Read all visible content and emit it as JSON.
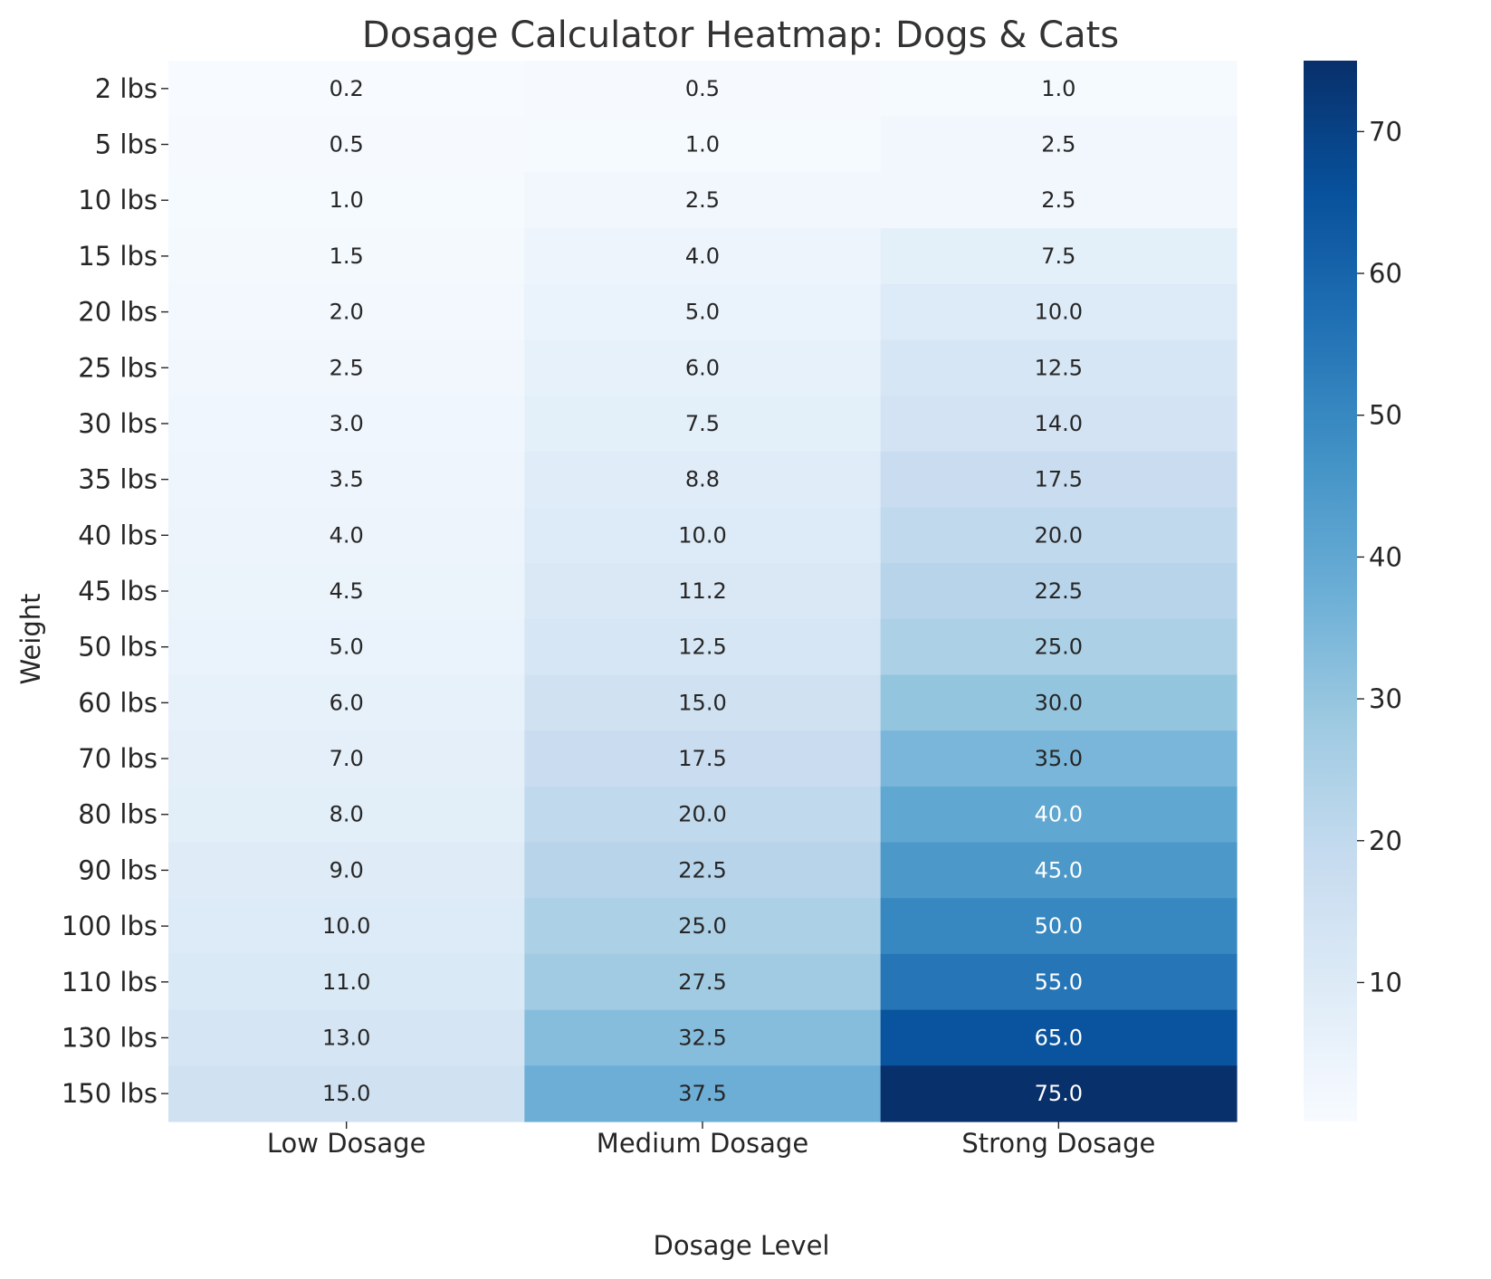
{
  "chart_data": {
    "type": "heatmap",
    "title": "Dosage Calculator Heatmap: Dogs & Cats",
    "xlabel": "Dosage Level",
    "ylabel": "Weight",
    "x_categories": [
      "Low Dosage",
      "Medium Dosage",
      "Strong Dosage"
    ],
    "y_categories": [
      "2 lbs",
      "5 lbs",
      "10 lbs",
      "15 lbs",
      "20 lbs",
      "25 lbs",
      "30 lbs",
      "35 lbs",
      "40 lbs",
      "45 lbs",
      "50 lbs",
      "60 lbs",
      "70 lbs",
      "80 lbs",
      "90 lbs",
      "100 lbs",
      "110 lbs",
      "130 lbs",
      "150 lbs"
    ],
    "values": [
      [
        0.2,
        0.5,
        1.0
      ],
      [
        0.5,
        1.0,
        2.5
      ],
      [
        1.0,
        2.5,
        2.5
      ],
      [
        1.5,
        4.0,
        7.5
      ],
      [
        2.0,
        5.0,
        10.0
      ],
      [
        2.5,
        6.0,
        12.5
      ],
      [
        3.0,
        7.5,
        14.0
      ],
      [
        3.5,
        8.8,
        17.5
      ],
      [
        4.0,
        10.0,
        20.0
      ],
      [
        4.5,
        11.2,
        22.5
      ],
      [
        5.0,
        12.5,
        25.0
      ],
      [
        6.0,
        15.0,
        30.0
      ],
      [
        7.0,
        17.5,
        35.0
      ],
      [
        8.0,
        20.0,
        40.0
      ],
      [
        9.0,
        22.5,
        45.0
      ],
      [
        10.0,
        25.0,
        50.0
      ],
      [
        11.0,
        27.5,
        55.0
      ],
      [
        13.0,
        32.5,
        65.0
      ],
      [
        15.0,
        37.5,
        75.0
      ]
    ],
    "value_labels": [
      [
        "0.2",
        "0.5",
        "1.0"
      ],
      [
        "0.5",
        "1.0",
        "2.5"
      ],
      [
        "1.0",
        "2.5",
        "2.5"
      ],
      [
        "1.5",
        "4.0",
        "7.5"
      ],
      [
        "2.0",
        "5.0",
        "10.0"
      ],
      [
        "2.5",
        "6.0",
        "12.5"
      ],
      [
        "3.0",
        "7.5",
        "14.0"
      ],
      [
        "3.5",
        "8.8",
        "17.5"
      ],
      [
        "4.0",
        "10.0",
        "20.0"
      ],
      [
        "4.5",
        "11.2",
        "22.5"
      ],
      [
        "5.0",
        "12.5",
        "25.0"
      ],
      [
        "6.0",
        "15.0",
        "30.0"
      ],
      [
        "7.0",
        "17.5",
        "35.0"
      ],
      [
        "8.0",
        "20.0",
        "40.0"
      ],
      [
        "9.0",
        "22.5",
        "45.0"
      ],
      [
        "10.0",
        "25.0",
        "50.0"
      ],
      [
        "11.0",
        "27.5",
        "55.0"
      ],
      [
        "13.0",
        "32.5",
        "65.0"
      ],
      [
        "15.0",
        "37.5",
        "75.0"
      ]
    ],
    "colormap": "Blues",
    "color_range": [
      0.2,
      75.0
    ],
    "colorbar_ticks": [
      10,
      20,
      30,
      40,
      50,
      60,
      70
    ],
    "colorbar_placement": "right",
    "grid": false
  }
}
